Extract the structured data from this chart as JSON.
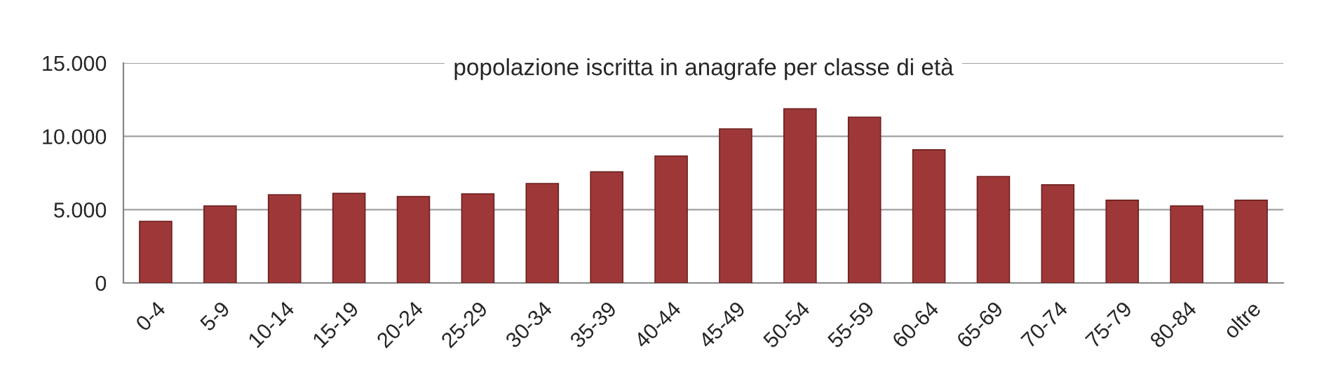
{
  "chart_data": {
    "type": "bar",
    "title": "popolazione iscritta in anagrafe per classe di età",
    "categories": [
      "0-4",
      "5-9",
      "10-14",
      "15-19",
      "20-24",
      "25-29",
      "30-34",
      "35-39",
      "40-44",
      "45-49",
      "50-54",
      "55-59",
      "60-64",
      "65-69",
      "70-74",
      "75-79",
      "80-84",
      "oltre"
    ],
    "values": [
      4200,
      5250,
      6020,
      6110,
      5890,
      6080,
      6780,
      7580,
      8660,
      10510,
      11880,
      11310,
      9080,
      7260,
      6690,
      5640,
      5250,
      5640
    ],
    "color": "#9e3838",
    "ylim": [
      0,
      15000
    ],
    "yticks": [
      0,
      {
        "value": 5000,
        "label": "5.000"
      },
      {
        "value": 10000,
        "label": "10.000"
      },
      {
        "value": 15000,
        "label": "15.000"
      }
    ],
    "grid": "y"
  }
}
